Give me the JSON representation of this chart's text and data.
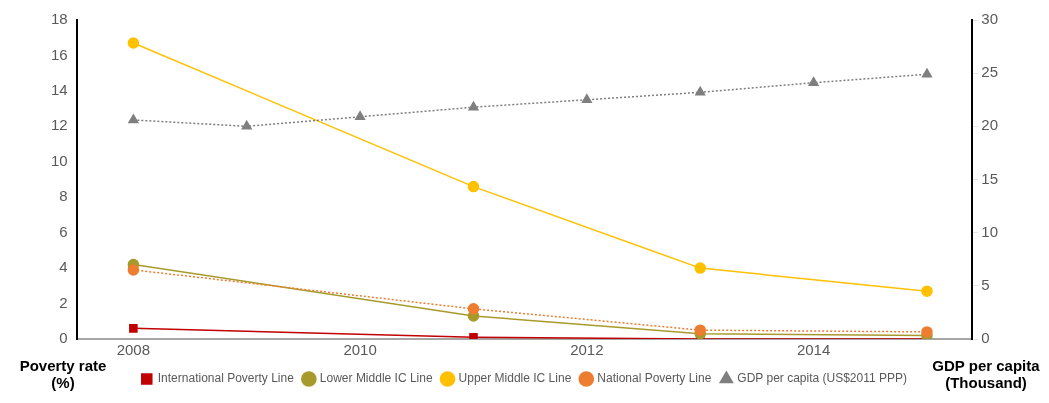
{
  "chart_data": {
    "type": "line",
    "xlabel": null,
    "ylabel": "Poverty rate (%)",
    "y2label": "GDP per capita (Thousand)",
    "xlim": [
      2007.5,
      2015.4
    ],
    "xticks": [
      2008,
      2010,
      2012,
      2014
    ],
    "ylim": [
      0,
      18
    ],
    "yticks": [
      0,
      2,
      4,
      6,
      8,
      10,
      12,
      14,
      16,
      18
    ],
    "y2lim": [
      0,
      30
    ],
    "y2ticks": [
      0,
      5,
      10,
      15,
      20,
      25,
      30
    ],
    "grid": false,
    "legend": "bottom",
    "series": [
      {
        "name": "International Poverty Line",
        "color": "#c00000",
        "marker": "square",
        "line_style": "solid",
        "x": [
          2008,
          2011,
          2013,
          2015
        ],
        "values": [
          0.6,
          0.1,
          0.0,
          0.0
        ]
      },
      {
        "name": "Lower Middle IC Line",
        "color": "#a89a2a",
        "marker": "circle",
        "line_style": "solid",
        "x": [
          2008,
          2011,
          2013,
          2015
        ],
        "values": [
          4.2,
          1.3,
          0.3,
          0.2
        ]
      },
      {
        "name": "Upper Middle IC Line",
        "color": "#ffc000",
        "marker": "circle",
        "line_style": "solid",
        "x": [
          2008,
          2011,
          2013,
          2015
        ],
        "values": [
          16.7,
          8.6,
          4.0,
          2.7
        ]
      },
      {
        "name": "National Poverty Line",
        "color": "#ed7d31",
        "marker": "circle",
        "line_style": "dotted",
        "x": [
          2008,
          2011,
          2013,
          2015
        ],
        "values": [
          3.9,
          1.7,
          0.5,
          0.4
        ]
      },
      {
        "name": "GDP per capita (US$2011 PPP)",
        "color": "#7f7f7f",
        "marker": "triangle",
        "line_style": "dotted",
        "axis": "y2",
        "x": [
          2008,
          2009,
          2010,
          2011,
          2012,
          2013,
          2014,
          2015
        ],
        "values": [
          20.6,
          20.0,
          20.9,
          21.8,
          22.5,
          23.2,
          24.1,
          24.9
        ]
      }
    ]
  }
}
